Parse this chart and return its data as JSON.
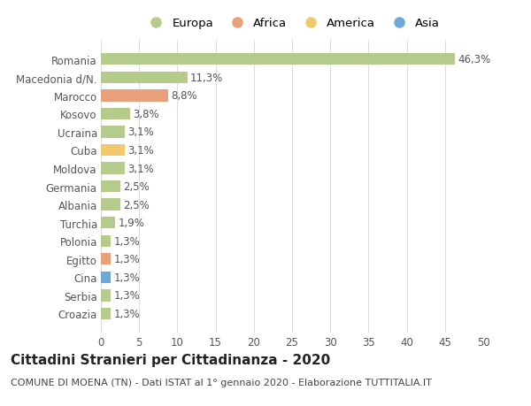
{
  "categories": [
    "Croazia",
    "Serbia",
    "Cina",
    "Egitto",
    "Polonia",
    "Turchia",
    "Albania",
    "Germania",
    "Moldova",
    "Cuba",
    "Ucraina",
    "Kosovo",
    "Marocco",
    "Macedonia d/N.",
    "Romania"
  ],
  "values": [
    1.3,
    1.3,
    1.3,
    1.3,
    1.3,
    1.9,
    2.5,
    2.5,
    3.1,
    3.1,
    3.1,
    3.8,
    8.8,
    11.3,
    46.3
  ],
  "colors": [
    "#b5cb8b",
    "#b5cb8b",
    "#6fa8d6",
    "#e8a07a",
    "#b5cb8b",
    "#b5cb8b",
    "#b5cb8b",
    "#b5cb8b",
    "#b5cb8b",
    "#f0c96e",
    "#b5cb8b",
    "#b5cb8b",
    "#e8a07a",
    "#b5cb8b",
    "#b5cb8b"
  ],
  "labels": [
    "1,3%",
    "1,3%",
    "1,3%",
    "1,3%",
    "1,3%",
    "1,9%",
    "2,5%",
    "2,5%",
    "3,1%",
    "3,1%",
    "3,1%",
    "3,8%",
    "8,8%",
    "11,3%",
    "46,3%"
  ],
  "legend": [
    {
      "label": "Europa",
      "color": "#b5cb8b"
    },
    {
      "label": "Africa",
      "color": "#e8a07a"
    },
    {
      "label": "America",
      "color": "#f0c96e"
    },
    {
      "label": "Asia",
      "color": "#6fa8d6"
    }
  ],
  "xlim": [
    0,
    50
  ],
  "xticks": [
    0,
    5,
    10,
    15,
    20,
    25,
    30,
    35,
    40,
    45,
    50
  ],
  "title": "Cittadini Stranieri per Cittadinanza - 2020",
  "subtitle": "COMUNE DI MOENA (TN) - Dati ISTAT al 1° gennaio 2020 - Elaborazione TUTTITALIA.IT",
  "background_color": "#ffffff",
  "grid_color": "#dddddd",
  "bar_height": 0.65,
  "label_fontsize": 8.5,
  "tick_fontsize": 8.5,
  "title_fontsize": 11,
  "subtitle_fontsize": 8
}
